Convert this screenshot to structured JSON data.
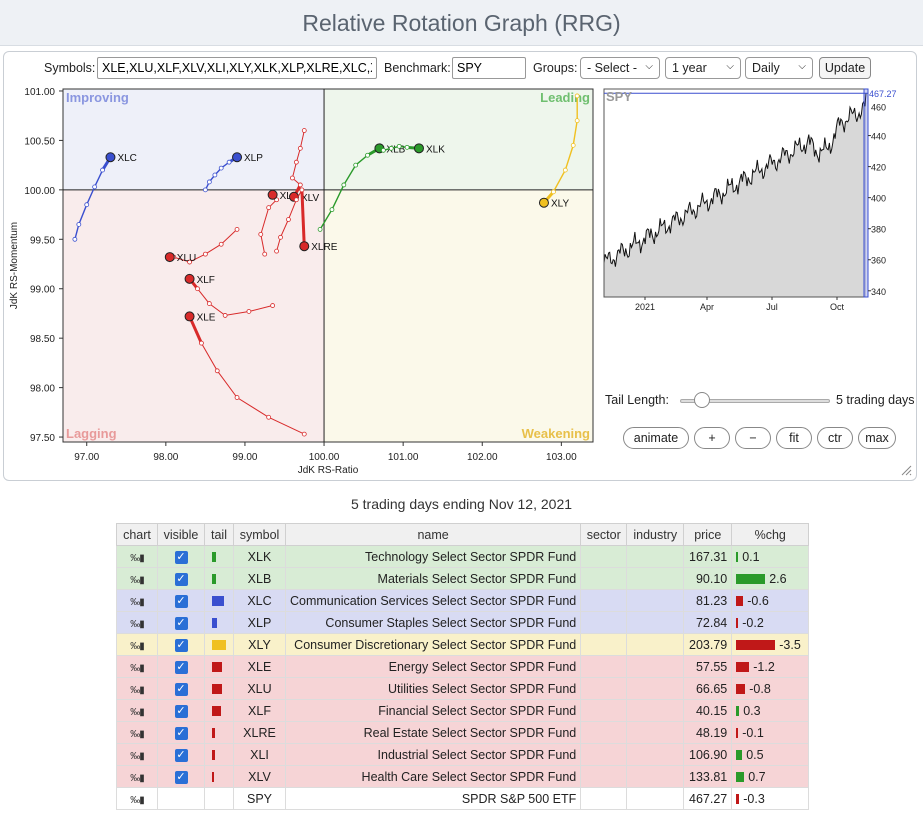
{
  "title": "Relative Rotation Graph (RRG)",
  "controls": {
    "symbols_label": "Symbols:",
    "symbols_value": "XLE,XLU,XLF,XLV,XLI,XLY,XLK,XLP,XLRE,XLC,XLB",
    "benchmark_label": "Benchmark:",
    "benchmark_value": "SPY",
    "groups_label": "Groups:",
    "groups_value": "- Select -",
    "period_value": "1 year",
    "frequency_value": "Daily",
    "update_label": "Update"
  },
  "rrg": {
    "x_label": "JdK RS-Ratio",
    "y_label": "JdK RS-Momentum",
    "x_ticks": [
      "97.00",
      "98.00",
      "99.00",
      "100.00",
      "101.00",
      "102.00",
      "103.00"
    ],
    "y_ticks": [
      "101.00",
      "100.50",
      "100.00",
      "99.50",
      "99.00",
      "98.50",
      "98.00",
      "97.50"
    ],
    "quadrants": {
      "improving": "Improving",
      "leading": "Leading",
      "weakening": "Weakening",
      "lagging": "Lagging"
    },
    "colors": {
      "improving": "#eef0f9",
      "leading": "#eef6ec",
      "weakening": "#fbf9ea",
      "lagging": "#f9ecec",
      "improving_text": "#8a96e0",
      "leading_text": "#6fbf6f",
      "weakening_text": "#e8c04a",
      "lagging_text": "#e89a9a"
    }
  },
  "chart_data": {
    "type": "scatter",
    "xlim": [
      96.7,
      103.4
    ],
    "ylim": [
      97.45,
      101.02
    ],
    "series": [
      {
        "name": "XLC",
        "color": "#3a4fcf",
        "points": [
          [
            96.85,
            99.5
          ],
          [
            96.9,
            99.65
          ],
          [
            97.0,
            99.85
          ],
          [
            97.1,
            100.03
          ],
          [
            97.2,
            100.2
          ],
          [
            97.3,
            100.33
          ]
        ]
      },
      {
        "name": "XLP",
        "color": "#3a4fcf",
        "points": [
          [
            98.5,
            100.0
          ],
          [
            98.55,
            100.08
          ],
          [
            98.62,
            100.15
          ],
          [
            98.7,
            100.22
          ],
          [
            98.8,
            100.28
          ],
          [
            98.9,
            100.33
          ]
        ]
      },
      {
        "name": "XLI",
        "color": "#d82a2a",
        "points": [
          [
            99.25,
            99.35
          ],
          [
            99.2,
            99.55
          ],
          [
            99.3,
            99.82
          ],
          [
            99.4,
            99.9
          ],
          [
            99.35,
            99.95
          ]
        ]
      },
      {
        "name": "XLV",
        "color": "#d82a2a",
        "points": [
          [
            99.75,
            100.6
          ],
          [
            99.7,
            100.42
          ],
          [
            99.65,
            100.28
          ],
          [
            99.6,
            100.12
          ],
          [
            99.7,
            100.05
          ],
          [
            99.62,
            99.93
          ]
        ]
      },
      {
        "name": "XLRE",
        "color": "#d82a2a",
        "points": [
          [
            99.4,
            99.38
          ],
          [
            99.45,
            99.52
          ],
          [
            99.55,
            99.7
          ],
          [
            99.65,
            99.9
          ],
          [
            99.72,
            100.0
          ],
          [
            99.75,
            99.43
          ]
        ]
      },
      {
        "name": "XLU",
        "color": "#d82a2a",
        "points": [
          [
            98.9,
            99.6
          ],
          [
            98.7,
            99.45
          ],
          [
            98.5,
            99.35
          ],
          [
            98.3,
            99.27
          ],
          [
            98.1,
            99.32
          ],
          [
            98.05,
            99.32
          ]
        ]
      },
      {
        "name": "XLF",
        "color": "#d82a2a",
        "points": [
          [
            99.35,
            98.83
          ],
          [
            99.05,
            98.77
          ],
          [
            98.75,
            98.73
          ],
          [
            98.55,
            98.85
          ],
          [
            98.4,
            99.0
          ],
          [
            98.3,
            99.1
          ]
        ]
      },
      {
        "name": "XLE",
        "color": "#d82a2a",
        "points": [
          [
            99.75,
            97.53
          ],
          [
            99.3,
            97.7
          ],
          [
            98.9,
            97.9
          ],
          [
            98.65,
            98.17
          ],
          [
            98.45,
            98.45
          ],
          [
            98.3,
            98.72
          ]
        ]
      },
      {
        "name": "XLB",
        "color": "#2a9a2a",
        "points": [
          [
            99.95,
            99.6
          ],
          [
            100.1,
            99.8
          ],
          [
            100.25,
            100.05
          ],
          [
            100.4,
            100.25
          ],
          [
            100.55,
            100.35
          ],
          [
            100.7,
            100.42
          ]
        ]
      },
      {
        "name": "XLK",
        "color": "#2a9a2a",
        "points": [
          [
            100.75,
            100.4
          ],
          [
            100.85,
            100.42
          ],
          [
            100.95,
            100.44
          ],
          [
            101.05,
            100.43
          ],
          [
            101.2,
            100.42
          ]
        ]
      },
      {
        "name": "XLY",
        "color": "#f0c020",
        "points": [
          [
            103.2,
            100.95
          ],
          [
            103.2,
            100.7
          ],
          [
            103.15,
            100.45
          ],
          [
            103.05,
            100.2
          ],
          [
            102.9,
            99.98
          ],
          [
            102.78,
            99.87
          ]
        ]
      }
    ]
  },
  "spy_chart": {
    "label": "SPY",
    "last_value": "467.27",
    "y_ticks": [
      "460",
      "440",
      "420",
      "400",
      "380",
      "360",
      "340"
    ],
    "x_ticks": [
      "2021",
      "Apr",
      "Jul",
      "Oct"
    ]
  },
  "tail": {
    "label": "Tail Length:",
    "days": "5 trading days"
  },
  "buttons": {
    "animate": "animate",
    "zoom_in": "+",
    "zoom_out": "−",
    "fit": "fit",
    "center": "ctr",
    "max": "max"
  },
  "subtitle": "5 trading days ending Nov 12, 2021",
  "table": {
    "headers": [
      "chart",
      "visible",
      "tail",
      "symbol",
      "name",
      "sector",
      "industry",
      "price",
      "%chg"
    ],
    "rows": [
      {
        "symbol": "XLK",
        "name": "Technology Select Sector SPDR Fund",
        "price": "167.31",
        "chg": "0.1",
        "group": "green",
        "tail_color": "#2a9a2a",
        "tail_w": 4,
        "chg_value": 0.1
      },
      {
        "symbol": "XLB",
        "name": "Materials Select Sector SPDR Fund",
        "price": "90.10",
        "chg": "2.6",
        "group": "green",
        "tail_color": "#2a9a2a",
        "tail_w": 4,
        "chg_value": 2.6
      },
      {
        "symbol": "XLC",
        "name": "Communication Services Select Sector SPDR Fund",
        "price": "81.23",
        "chg": "-0.6",
        "group": "blue",
        "tail_color": "#3a4fcf",
        "tail_w": 12,
        "chg_value": -0.6
      },
      {
        "symbol": "XLP",
        "name": "Consumer Staples Select Sector SPDR Fund",
        "price": "72.84",
        "chg": "-0.2",
        "group": "blue",
        "tail_color": "#3a4fcf",
        "tail_w": 5,
        "chg_value": -0.2
      },
      {
        "symbol": "XLY",
        "name": "Consumer Discretionary Select Sector SPDR Fund",
        "price": "203.79",
        "chg": "-3.5",
        "group": "yellow",
        "tail_color": "#f0c020",
        "tail_w": 14,
        "chg_value": -3.5
      },
      {
        "symbol": "XLE",
        "name": "Energy Select Sector SPDR Fund",
        "price": "57.55",
        "chg": "-1.2",
        "group": "red",
        "tail_color": "#c01818",
        "tail_w": 10,
        "chg_value": -1.2
      },
      {
        "symbol": "XLU",
        "name": "Utilities Select Sector SPDR Fund",
        "price": "66.65",
        "chg": "-0.8",
        "group": "red",
        "tail_color": "#c01818",
        "tail_w": 10,
        "chg_value": -0.8
      },
      {
        "symbol": "XLF",
        "name": "Financial Select Sector SPDR Fund",
        "price": "40.15",
        "chg": "0.3",
        "group": "red",
        "tail_color": "#c01818",
        "tail_w": 9,
        "chg_value": 0.3
      },
      {
        "symbol": "XLRE",
        "name": "Real Estate Select Sector SPDR Fund",
        "price": "48.19",
        "chg": "-0.1",
        "group": "red",
        "tail_color": "#c01818",
        "tail_w": 3,
        "chg_value": -0.1
      },
      {
        "symbol": "XLI",
        "name": "Industrial Select Sector SPDR Fund",
        "price": "106.90",
        "chg": "0.5",
        "group": "red",
        "tail_color": "#c01818",
        "tail_w": 3,
        "chg_value": 0.5
      },
      {
        "symbol": "XLV",
        "name": "Health Care Select Sector SPDR Fund",
        "price": "133.81",
        "chg": "0.7",
        "group": "red",
        "tail_color": "#c01818",
        "tail_w": 2,
        "chg_value": 0.7
      },
      {
        "symbol": "SPY",
        "name": "SPDR S&P 500 ETF",
        "price": "467.27",
        "chg": "-0.3",
        "group": "white",
        "tail_color": "",
        "tail_w": 0,
        "chg_value": -0.3
      }
    ]
  }
}
